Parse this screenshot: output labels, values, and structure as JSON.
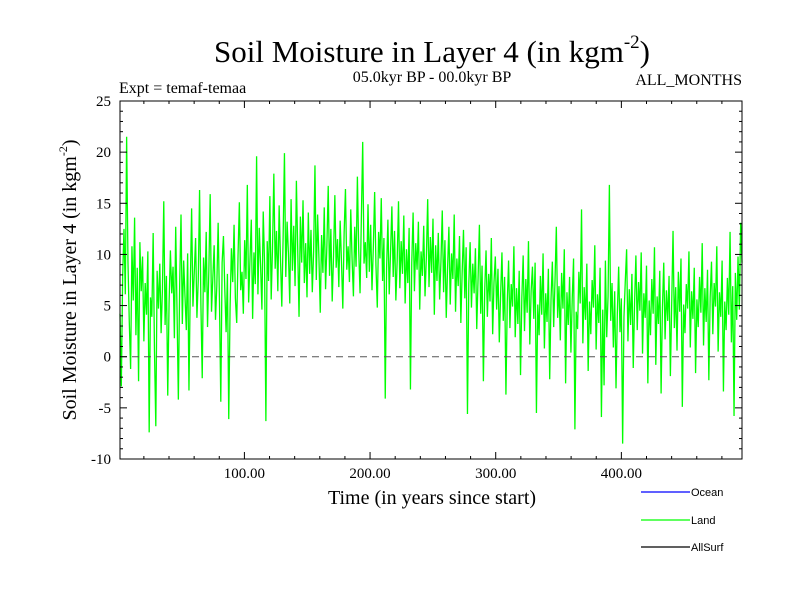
{
  "chart_data": {
    "type": "line",
    "title": "Soil Moisture in Layer 4 (in kgm",
    "title_superscript": "-2",
    "title_close": ")",
    "subtitle_left": "Expt = temaf-temaa",
    "subtitle_center": "05.0kyr BP - 00.0kyr BP",
    "subtitle_right": "ALL_MONTHS",
    "xlabel": "Time (in years since start)",
    "ylabel": "Soil Moisture in Layer 4 (in kgm",
    "ylabel_superscript": "-2",
    "ylabel_close": ")",
    "xlim": [
      1,
      496
    ],
    "ylim": [
      -10,
      25
    ],
    "x_ticks": [
      {
        "value": 100,
        "label": "100.00"
      },
      {
        "value": 200,
        "label": "200.00"
      },
      {
        "value": 300,
        "label": "300.00"
      },
      {
        "value": 400,
        "label": "400.00"
      }
    ],
    "y_ticks": [
      {
        "value": 25,
        "label": "25"
      },
      {
        "value": 20,
        "label": "20"
      },
      {
        "value": 15,
        "label": "15"
      },
      {
        "value": 10,
        "label": "10"
      },
      {
        "value": 5,
        "label": "5"
      },
      {
        "value": 0,
        "label": "0"
      },
      {
        "value": -5,
        "label": "-5"
      },
      {
        "value": -10,
        "label": "-10"
      }
    ],
    "reference_line": {
      "y": 0,
      "style": "dashed"
    },
    "legend": {
      "placement": "bottom-right",
      "entries": [
        {
          "name": "Ocean",
          "color": "#0000ff"
        },
        {
          "name": "Land",
          "color": "#00ff00"
        },
        {
          "name": "AllSurf",
          "color": "#000000"
        }
      ]
    },
    "series": [
      {
        "name": "Land",
        "color": "#00ff00",
        "x_start": 1,
        "x_end": 496,
        "values": [
          4.2,
          -2.9,
          7.8,
          12.5,
          6.1,
          21.5,
          9.3,
          3.4,
          -1.2,
          10.8,
          5.5,
          13.6,
          2.1,
          8.7,
          -2.4,
          11.2,
          6.4,
          9.8,
          1.5,
          7.2,
          4.1,
          10.3,
          -7.4,
          5.8,
          3.9,
          12.1,
          0.6,
          -6.8,
          8.4,
          4.7,
          9.1,
          2.3,
          6.6,
          15.2,
          3.1,
          7.9,
          -3.8,
          5.2,
          10.4,
          6.2,
          8.8,
          1.8,
          12.7,
          4.5,
          -4.2,
          7.1,
          13.9,
          3.2,
          9.4,
          5.9,
          2.6,
          10.1,
          -3.3,
          6.8,
          14.5,
          4.9,
          8.2,
          11.6,
          3.8,
          7.5,
          16.3,
          5.1,
          -2.1,
          9.7,
          6.3,
          12.2,
          2.9,
          8.5,
          15.9,
          4.4,
          7.7,
          10.9,
          3.6,
          6.9,
          13.1,
          5.4,
          -4.4,
          9.2,
          11.8,
          6.7,
          2.4,
          8.1,
          -6.1,
          4.8,
          10.6,
          7.3,
          12.9,
          5.7,
          3.3,
          9.9,
          15.1,
          6.5,
          8.3,
          4.2,
          11.4,
          7.6,
          16.8,
          5.3,
          9.5,
          13.4,
          3.7,
          10.2,
          7.1,
          19.6,
          6.1,
          12.6,
          8.9,
          4.6,
          14.2,
          9.1,
          -6.3,
          11.3,
          7.4,
          15.7,
          5.6,
          10.7,
          17.9,
          8.6,
          12.3,
          6.4,
          14.8,
          9.6,
          4.9,
          11.7,
          19.9,
          7.8,
          13.2,
          10.1,
          5.2,
          15.4,
          8.4,
          12.8,
          6.9,
          17.2,
          10.5,
          3.9,
          13.7,
          9.2,
          15.3,
          7.2,
          11.1,
          5.8,
          14.1,
          8.1,
          12.4,
          6.3,
          10.3,
          18.7,
          7.5,
          13.9,
          9.7,
          4.3,
          11.9,
          8.2,
          14.6,
          6.6,
          10.9,
          16.7,
          7.9,
          12.5,
          5.4,
          9.8,
          15.8,
          8.7,
          11.5,
          6.8,
          13.3,
          9.3,
          4.7,
          12.1,
          16.4,
          8.5,
          10.8,
          7.3,
          14.4,
          9.5,
          5.9,
          12.7,
          8.8,
          17.6,
          10.4,
          6.2,
          13.6,
          21.0,
          9.1,
          11.2,
          7.7,
          14.9,
          8.3,
          12.9,
          6.5,
          10.6,
          16.1,
          8.9,
          4.8,
          12.2,
          9.6,
          15.5,
          7.4,
          11.6,
          -4.1,
          8.6,
          13.4,
          6.1,
          10.2,
          14.7,
          7.8,
          12.3,
          5.5,
          9.4,
          15.2,
          6.7,
          11.3,
          8.1,
          13.8,
          5.2,
          10.5,
          7.2,
          12.6,
          -3.2,
          9.2,
          14.1,
          6.4,
          11.1,
          8.5,
          13.2,
          4.6,
          10.3,
          7.9,
          12.8,
          5.9,
          9.7,
          15.4,
          6.8,
          11.7,
          8.2,
          13.5,
          4.1,
          10.9,
          7.4,
          12.1,
          5.6,
          9.3,
          14.3,
          6.3,
          11.4,
          3.8,
          8.7,
          12.7,
          5.1,
          10.1,
          7.6,
          13.9,
          4.4,
          9.6,
          6.9,
          11.8,
          3.3,
          8.3,
          12.4,
          5.7,
          10.7,
          -5.6,
          7.1,
          11.2,
          4.8,
          9.1,
          6.2,
          10.6,
          2.7,
          7.7,
          12.9,
          4.2,
          8.9,
          -2.4,
          6.5,
          10.4,
          3.9,
          8.1,
          5.4,
          11.6,
          2.2,
          7.3,
          9.8,
          4.6,
          8.6,
          1.4,
          6.1,
          10.2,
          3.5,
          7.8,
          -3.7,
          5.3,
          9.4,
          2.8,
          7.1,
          4.9,
          10.8,
          1.9,
          6.7,
          3.2,
          8.4,
          -1.8,
          5.8,
          9.9,
          2.5,
          7.6,
          4.3,
          11.3,
          1.2,
          6.4,
          8.8,
          3.7,
          9.2,
          -5.5,
          5.1,
          2.1,
          7.9,
          4.1,
          10.1,
          0.8,
          6.2,
          3.4,
          8.6,
          -2.2,
          5.6,
          9.3,
          2.9,
          7.4,
          12.7,
          3.8,
          6.9,
          1.6,
          8.2,
          4.7,
          10.5,
          -2.6,
          6.3,
          3.1,
          7.8,
          0.4,
          5.7,
          9.6,
          -7.1,
          4.4,
          2.7,
          8.3,
          5.2,
          14.4,
          1.3,
          6.8,
          3.6,
          9.1,
          -1.4,
          5.4,
          2.2,
          7.5,
          4.8,
          10.9,
          0.7,
          6.1,
          3.3,
          8.7,
          -5.9,
          4.6,
          -2.8,
          9.4,
          1.9,
          5.9,
          16.8,
          3.5,
          7.2,
          0.9,
          6.4,
          -3.1,
          4.2,
          8.8,
          2.4,
          5.7,
          -8.5,
          3.9,
          7.4,
          10.5,
          1.5,
          6.6,
          3.1,
          8.1,
          -1.1,
          5.3,
          9.9,
          2.6,
          7.3,
          4.5,
          10.2,
          0.3,
          6.2,
          3.8,
          8.9,
          -2.6,
          5.5,
          2.1,
          7.6,
          4.2,
          10.7,
          -0.8,
          5.9,
          3.2,
          8.4,
          -3.6,
          4.8,
          9.2,
          1.7,
          6.5,
          3.5,
          7.9,
          -1.9,
          5.2,
          12.3,
          2.8,
          6.8,
          0.6,
          8.3,
          4.4,
          9.6,
          -4.9,
          5.1,
          2.3,
          7.1,
          4.7,
          10.3,
          0.9,
          6.4,
          3.7,
          8.7,
          -1.6,
          5.6,
          2.9,
          7.8,
          4.3,
          11.1,
          1.1,
          6.7,
          3.4,
          8.5,
          -2.3,
          5.8,
          9.3,
          2.2,
          7.2,
          4.9,
          10.8,
          0.5,
          6.3,
          3.9,
          9.4,
          -3.4,
          5.4,
          2.6,
          7.7,
          4.1,
          12.2,
          1.4,
          6.9,
          -5.8,
          8.2,
          3.6,
          9.8,
          4.6,
          13.1,
          9.2
        ]
      }
    ]
  }
}
